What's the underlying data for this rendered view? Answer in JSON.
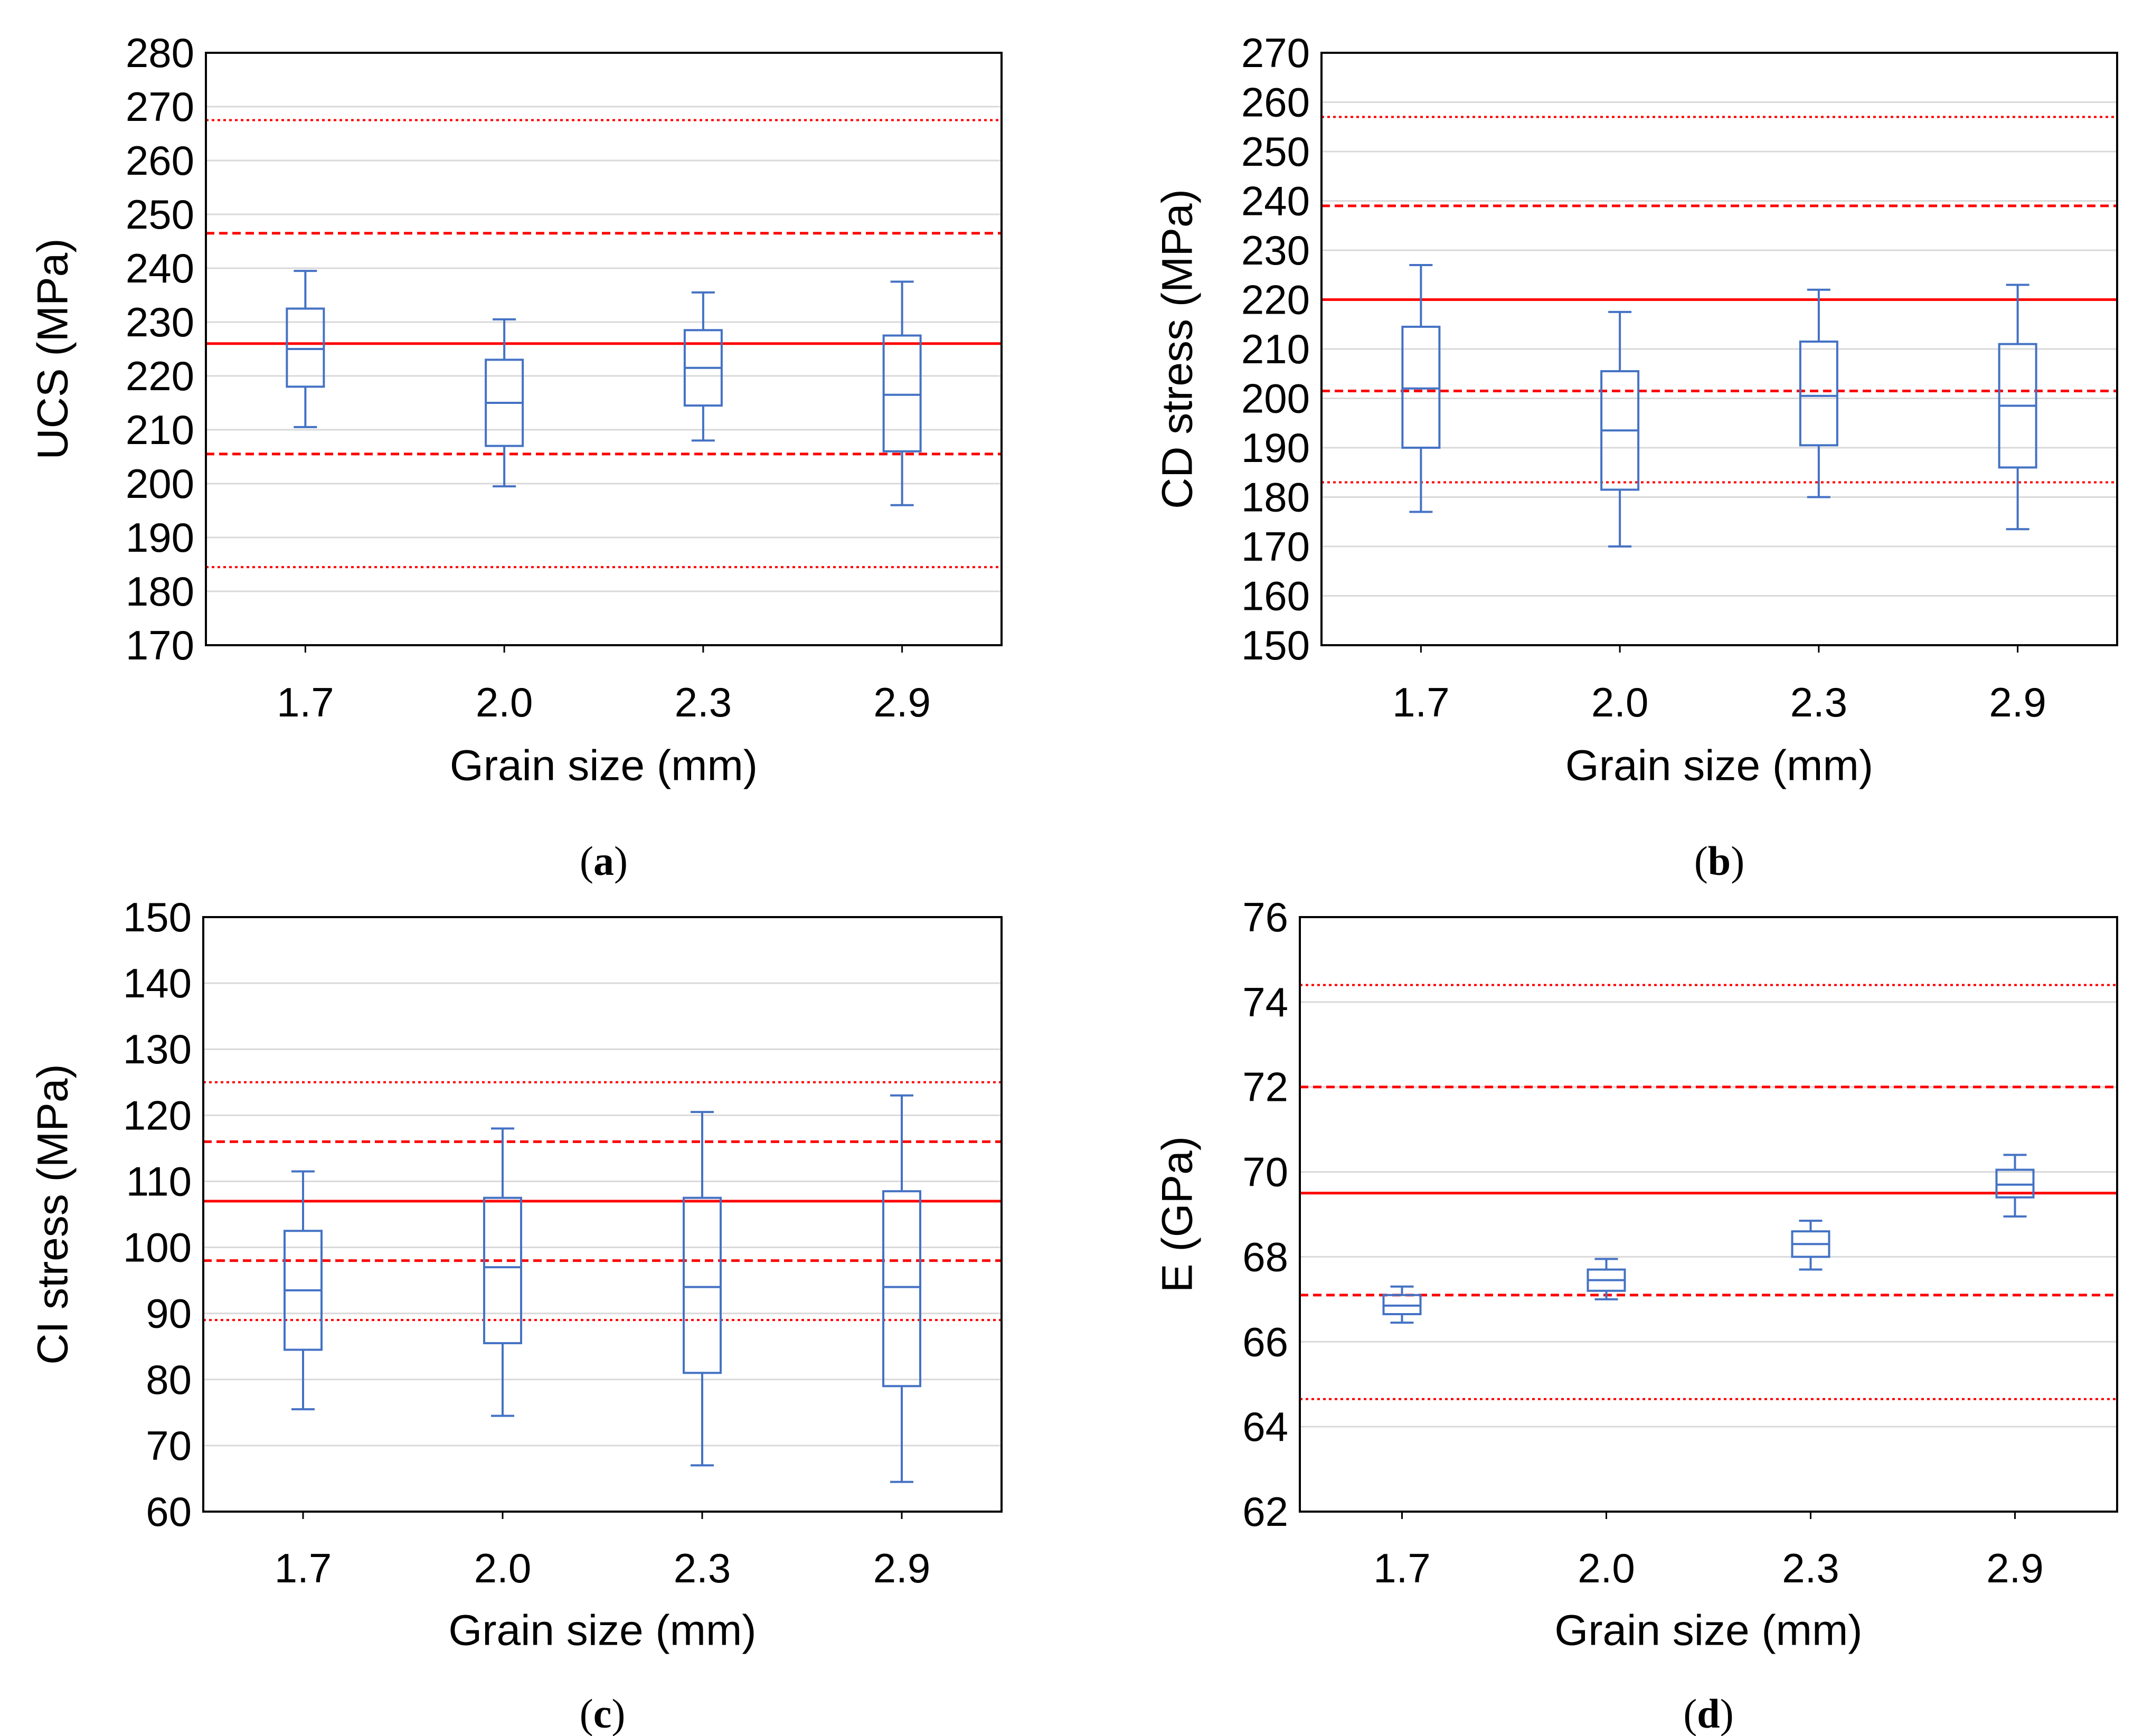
{
  "colors": {
    "box": "#4472C4",
    "mean_line": "#FF0000",
    "grid": "#D9D9D9",
    "frame": "#000000"
  },
  "chart_data": [
    {
      "type": "box",
      "panel_label": "a",
      "xlabel": "Grain size (mm)",
      "ylabel": "UCS (MPa)",
      "ylim": [
        170,
        280
      ],
      "yticks": [
        "170",
        "180",
        "190",
        "200",
        "210",
        "220",
        "230",
        "240",
        "250",
        "260",
        "270",
        "280"
      ],
      "categories": [
        "1.7",
        "2.0",
        "2.3",
        "2.9"
      ],
      "grid": true,
      "boxes": [
        {
          "min": 210.5,
          "q1": 218.0,
          "median": 225.0,
          "q3": 232.5,
          "max": 239.5
        },
        {
          "min": 199.5,
          "q1": 207.0,
          "median": 215.0,
          "q3": 223.0,
          "max": 230.5
        },
        {
          "min": 208.0,
          "q1": 214.5,
          "median": 221.5,
          "q3": 228.5,
          "max": 235.5
        },
        {
          "min": 196.0,
          "q1": 206.0,
          "median": 216.5,
          "q3": 227.5,
          "max": 237.5
        }
      ],
      "reference_lines": [
        {
          "value": 226.0,
          "style": "solid"
        },
        {
          "value": 246.5,
          "style": "dashed"
        },
        {
          "value": 205.5,
          "style": "dashed"
        },
        {
          "value": 267.5,
          "style": "dotted"
        },
        {
          "value": 184.5,
          "style": "dotted"
        }
      ]
    },
    {
      "type": "box",
      "panel_label": "b",
      "xlabel": "Grain size (mm)",
      "ylabel": "CD stress (MPa)",
      "ylim": [
        150,
        270
      ],
      "yticks": [
        "150",
        "160",
        "170",
        "180",
        "190",
        "200",
        "210",
        "220",
        "230",
        "240",
        "250",
        "260",
        "270"
      ],
      "categories": [
        "1.7",
        "2.0",
        "2.3",
        "2.9"
      ],
      "grid": true,
      "boxes": [
        {
          "min": 177.0,
          "q1": 190.0,
          "median": 202.0,
          "q3": 214.5,
          "max": 227.0
        },
        {
          "min": 170.0,
          "q1": 181.5,
          "median": 193.5,
          "q3": 205.5,
          "max": 217.5
        },
        {
          "min": 180.0,
          "q1": 190.5,
          "median": 200.5,
          "q3": 211.5,
          "max": 222.0
        },
        {
          "min": 173.5,
          "q1": 186.0,
          "median": 198.5,
          "q3": 211.0,
          "max": 223.0
        }
      ],
      "reference_lines": [
        {
          "value": 220.0,
          "style": "solid"
        },
        {
          "value": 239.0,
          "style": "dashed"
        },
        {
          "value": 201.5,
          "style": "dashed"
        },
        {
          "value": 257.0,
          "style": "dotted"
        },
        {
          "value": 183.0,
          "style": "dotted"
        }
      ]
    },
    {
      "type": "box",
      "panel_label": "c",
      "xlabel": "Grain size (mm)",
      "ylabel": "CI stress (MPa)",
      "ylim": [
        60,
        150
      ],
      "yticks": [
        "60",
        "70",
        "80",
        "90",
        "100",
        "110",
        "120",
        "130",
        "140",
        "150"
      ],
      "categories": [
        "1.7",
        "2.0",
        "2.3",
        "2.9"
      ],
      "grid": true,
      "boxes": [
        {
          "min": 75.5,
          "q1": 84.5,
          "median": 93.5,
          "q3": 102.5,
          "max": 111.5
        },
        {
          "min": 74.5,
          "q1": 85.5,
          "median": 97.0,
          "q3": 107.5,
          "max": 118.0
        },
        {
          "min": 67.0,
          "q1": 81.0,
          "median": 94.0,
          "q3": 107.5,
          "max": 120.5
        },
        {
          "min": 64.5,
          "q1": 79.0,
          "median": 94.0,
          "q3": 108.5,
          "max": 123.0
        }
      ],
      "reference_lines": [
        {
          "value": 107.0,
          "style": "solid"
        },
        {
          "value": 116.0,
          "style": "dashed"
        },
        {
          "value": 98.0,
          "style": "dashed"
        },
        {
          "value": 125.0,
          "style": "dotted"
        },
        {
          "value": 89.0,
          "style": "dotted"
        }
      ]
    },
    {
      "type": "box",
      "panel_label": "d",
      "xlabel": "Grain size (mm)",
      "ylabel": "E (GPa)",
      "ylim": [
        62,
        76
      ],
      "yticks": [
        "62",
        "64",
        "66",
        "68",
        "70",
        "72",
        "74",
        "76"
      ],
      "categories": [
        "1.7",
        "2.0",
        "2.3",
        "2.9"
      ],
      "grid": true,
      "boxes": [
        {
          "min": 66.45,
          "q1": 66.65,
          "median": 66.85,
          "q3": 67.1,
          "max": 67.3
        },
        {
          "min": 67.0,
          "q1": 67.2,
          "median": 67.45,
          "q3": 67.7,
          "max": 67.95
        },
        {
          "min": 67.7,
          "q1": 68.0,
          "median": 68.3,
          "q3": 68.6,
          "max": 68.85
        },
        {
          "min": 68.95,
          "q1": 69.4,
          "median": 69.7,
          "q3": 70.05,
          "max": 70.4
        }
      ],
      "reference_lines": [
        {
          "value": 69.5,
          "style": "solid"
        },
        {
          "value": 72.0,
          "style": "dashed"
        },
        {
          "value": 67.1,
          "style": "dashed"
        },
        {
          "value": 74.4,
          "style": "dotted"
        },
        {
          "value": 64.65,
          "style": "dotted"
        }
      ]
    }
  ]
}
